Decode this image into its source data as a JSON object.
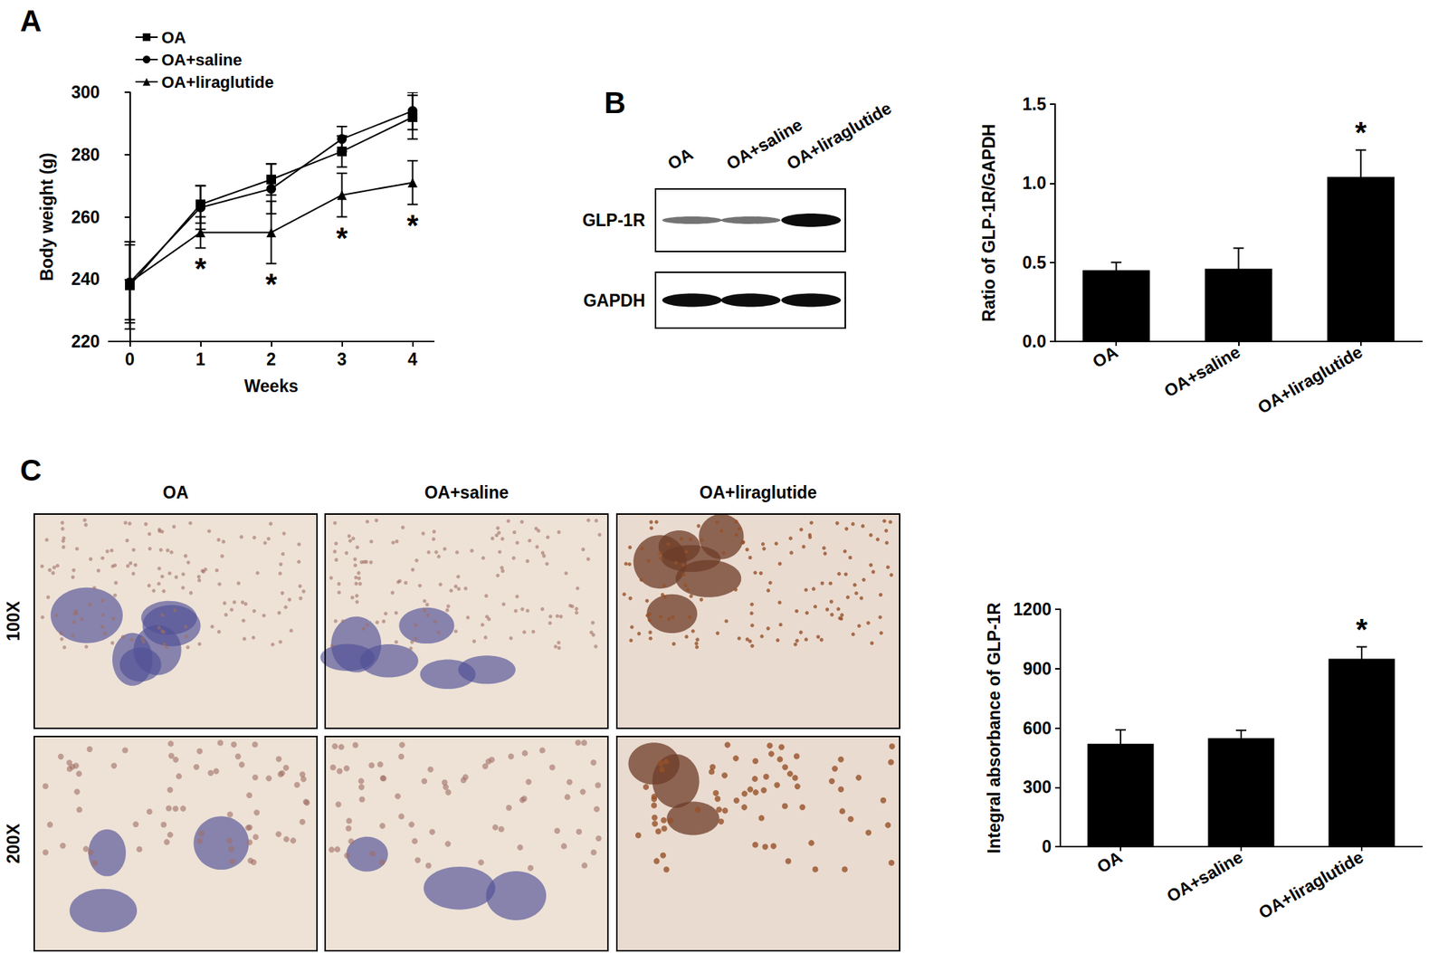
{
  "panels": [
    "A",
    "B",
    "C"
  ],
  "blot": {
    "lanes": [
      "OA",
      "OA+saline",
      "OA+liraglutide"
    ],
    "rows": [
      "GLP-1R",
      "GAPDH"
    ]
  },
  "histology": {
    "columns": [
      "OA",
      "OA+saline",
      "OA+liraglutide"
    ],
    "rows": [
      "100X",
      "200X"
    ]
  },
  "chart_data": [
    {
      "type": "line",
      "x_label": "Weeks",
      "y_label": "Body weight (g)",
      "x": [
        0,
        1,
        2,
        3,
        4
      ],
      "xlim": [
        -0.3,
        4.3
      ],
      "xticks": [
        0,
        1,
        2,
        3,
        4
      ],
      "ylim": [
        220,
        300
      ],
      "yticks": [
        220,
        240,
        260,
        280,
        300
      ],
      "grid": false,
      "legend": "upper left",
      "series": [
        {
          "name": "OA",
          "color": "#000000",
          "marker": "square",
          "values": [
            238,
            264,
            272,
            281,
            292
          ],
          "errors": [
            14,
            6,
            5,
            5,
            7
          ]
        },
        {
          "name": "OA+saline",
          "color": "#000000",
          "marker": "circle",
          "values": [
            239,
            263,
            269,
            285,
            294
          ],
          "errors": [
            13,
            7,
            8,
            4,
            6
          ]
        },
        {
          "name": "OA+liraglutide",
          "color": "#000000",
          "marker": "triangle",
          "values": [
            239,
            255,
            255,
            267,
            271
          ],
          "errors": [
            12,
            5,
            10,
            7,
            7
          ]
        }
      ],
      "annotations": [
        {
          "series": "OA+liraglutide",
          "x": 1,
          "text": "*"
        },
        {
          "series": "OA+liraglutide",
          "x": 2,
          "text": "*"
        },
        {
          "series": "OA+liraglutide",
          "x": 3,
          "text": "*"
        },
        {
          "series": "OA+liraglutide",
          "x": 4,
          "text": "*"
        }
      ]
    },
    {
      "type": "bar",
      "y_label": "Ratio of GLP-1R/GAPDH",
      "categories": [
        "OA",
        "OA+saline",
        "OA+liraglutide"
      ],
      "values": [
        0.45,
        0.46,
        1.04
      ],
      "errors": [
        0.05,
        0.13,
        0.17
      ],
      "color": "#000000",
      "ylim": [
        0,
        1.5
      ],
      "yticks": [
        {
          "value": 0,
          "label": "0.0"
        },
        0.5,
        {
          "value": 1,
          "label": "1.0"
        },
        1.5
      ],
      "grid": false,
      "annotations": [
        {
          "category": "OA+liraglutide",
          "text": "*"
        }
      ]
    },
    {
      "type": "bar",
      "y_label": "Integral absorbance of GLP-1R",
      "categories": [
        "OA",
        "OA+saline",
        "OA+liraglutide"
      ],
      "values": [
        520,
        548,
        950
      ],
      "errors": [
        70,
        40,
        60
      ],
      "color": "#000000",
      "ylim": [
        0,
        1200
      ],
      "yticks": [
        0,
        300,
        600,
        900,
        1200
      ],
      "grid": false,
      "annotations": [
        {
          "category": "OA+liraglutide",
          "text": "*"
        }
      ]
    }
  ]
}
